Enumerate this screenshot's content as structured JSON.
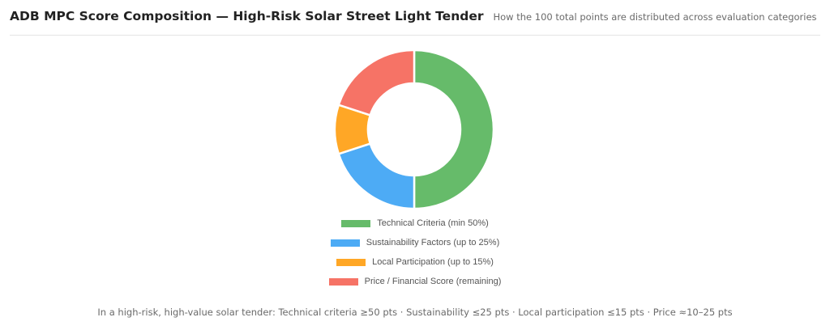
{
  "header": {
    "title": "ADB MPC Score Composition — High-Risk Solar Street Light Tender",
    "subtitle": "How the 100 total points are distributed across evaluation categories"
  },
  "chart_data": {
    "type": "pie",
    "variant": "donut",
    "categories": [
      "Technical Criteria (min 50%)",
      "Sustainability Factors (up to 25%)",
      "Local Participation (up to 15%)",
      "Price / Financial Score (remaining)"
    ],
    "values": [
      50,
      20,
      10,
      20
    ],
    "colors": [
      "#66bb6a",
      "#4dabf5",
      "#ffa726",
      "#f67366"
    ],
    "legend_position": "bottom",
    "segment_border_color": "#ffffff"
  },
  "footnote": "In a high-risk, high-value solar tender: Technical criteria ≥50 pts · Sustainability ≤25 pts · Local participation ≤15 pts · Price ≈10–25 pts"
}
